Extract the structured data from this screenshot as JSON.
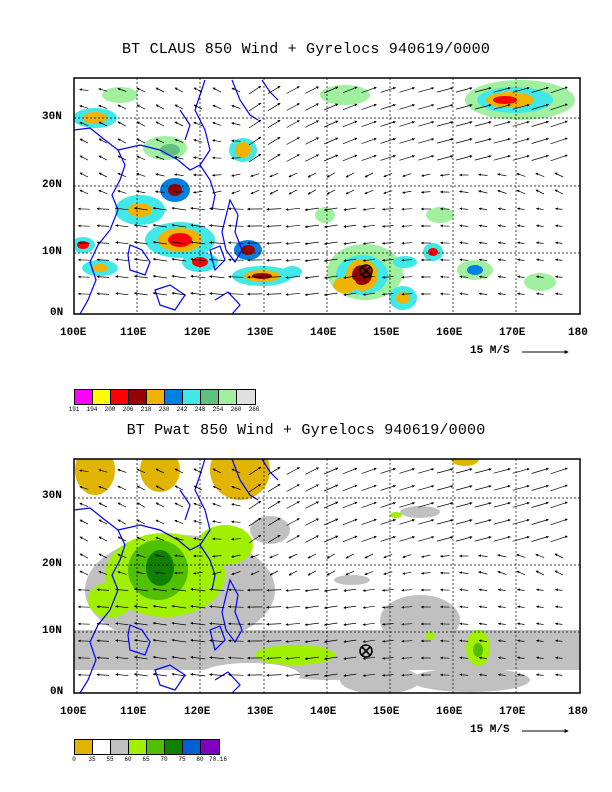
{
  "panels": [
    {
      "title": "BT CLAUS 850 Wind + Gyrelocs 940619/0000",
      "y_labels": [
        "0N",
        "10N",
        "20N",
        "30N"
      ],
      "x_labels": [
        "100E",
        "110E",
        "120E",
        "130E",
        "140E",
        "150E",
        "160E",
        "170E",
        "180"
      ],
      "scale_text": "15 M/S",
      "legend_values": [
        "191",
        "194",
        "200",
        "206",
        "218",
        "230",
        "242",
        "248",
        "254",
        "260",
        "266"
      ],
      "legend_colors": [
        "#ff00ff",
        "#ffff00",
        "#ff0000",
        "#990000",
        "#f0b400",
        "#0080e0",
        "#40e8e8",
        "#60c080",
        "#a0f0a0",
        "#e0e0e0"
      ]
    },
    {
      "title": "BT Pwat 850 Wind + Gyrelocs 940619/0000",
      "y_labels": [
        "0N",
        "10N",
        "20N",
        "30N"
      ],
      "x_labels": [
        "100E",
        "110E",
        "120E",
        "130E",
        "140E",
        "150E",
        "160E",
        "170E",
        "180"
      ],
      "scale_text": "15 M/S",
      "legend_values": [
        "0",
        "35",
        "55",
        "60",
        "65",
        "70",
        "75",
        "80",
        "70.16"
      ],
      "legend_colors": [
        "#e0b400",
        "#ffffff",
        "#c0c0c0",
        "#a0f000",
        "#50c000",
        "#108000",
        "#0060d0",
        "#8000c0"
      ]
    }
  ],
  "gyre_location": {
    "lon": 146,
    "lat": 7
  },
  "map_extent": {
    "lon": [
      100,
      180
    ],
    "lat": [
      0,
      35
    ]
  },
  "colors": {
    "coast": "#0000ff",
    "grid": "#000000"
  },
  "icons": [
    "gyre-marker-icon",
    "scale-arrow-icon"
  ]
}
